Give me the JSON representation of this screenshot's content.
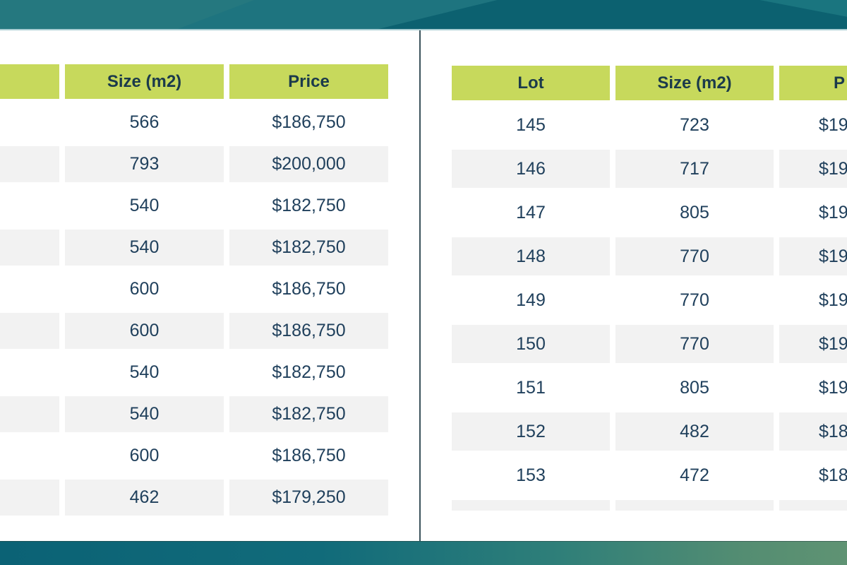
{
  "left_table": {
    "headers": {
      "lot": "",
      "size": "Size (m2)",
      "price": "Price"
    },
    "rows": [
      {
        "size": "566",
        "price": "$186,750"
      },
      {
        "size": "793",
        "price": "$200,000"
      },
      {
        "size": "540",
        "price": "$182,750"
      },
      {
        "size": "540",
        "price": "$182,750"
      },
      {
        "size": "600",
        "price": "$186,750"
      },
      {
        "size": "600",
        "price": "$186,750"
      },
      {
        "size": "540",
        "price": "$182,750"
      },
      {
        "size": "540",
        "price": "$182,750"
      },
      {
        "size": "600",
        "price": "$186,750"
      },
      {
        "size": "462",
        "price": "$179,250"
      }
    ]
  },
  "right_table": {
    "headers": {
      "lot": "Lot",
      "size": "Size (m2)",
      "price": "P"
    },
    "rows": [
      {
        "lot": "145",
        "size": "723",
        "price": "$19"
      },
      {
        "lot": "146",
        "size": "717",
        "price": "$19"
      },
      {
        "lot": "147",
        "size": "805",
        "price": "$19"
      },
      {
        "lot": "148",
        "size": "770",
        "price": "$19"
      },
      {
        "lot": "149",
        "size": "770",
        "price": "$19"
      },
      {
        "lot": "150",
        "size": "770",
        "price": "$19"
      },
      {
        "lot": "151",
        "size": "805",
        "price": "$19"
      },
      {
        "lot": "152",
        "size": "482",
        "price": "$18"
      },
      {
        "lot": "153",
        "size": "472",
        "price": "$18"
      }
    ]
  },
  "colors": {
    "header-bg": "#c7d95c",
    "alt-row-bg": "#f2f2f2",
    "cell-text": "#20405c",
    "header-text": "#1b3a4b",
    "top-banner": "#0c6170",
    "top-banner-light": "#1e747f",
    "divider": "#3c535c",
    "bottom-banner-start": "#0b6275",
    "bottom-banner-end": "#5f9373"
  }
}
